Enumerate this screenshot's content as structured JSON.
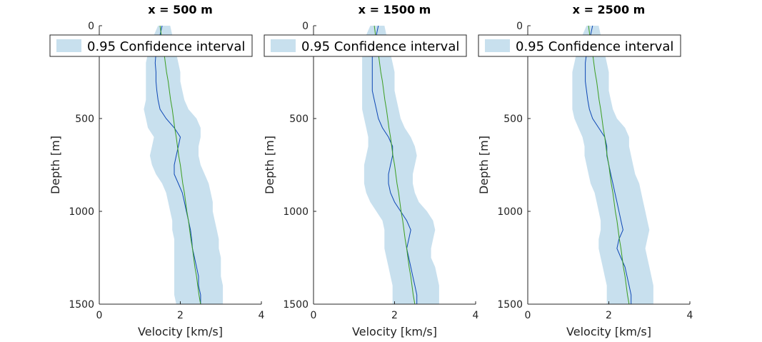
{
  "chart_data": [
    {
      "type": "line",
      "title": "x = 500 m",
      "xlabel": "Velocity [km/s]",
      "ylabel": "Depth [m]",
      "xlim": [
        0,
        4
      ],
      "ylim": [
        0,
        1500
      ],
      "y_reversed": true,
      "xticks": [
        "0",
        "2",
        "4"
      ],
      "yticks": [
        "0",
        "500",
        "1000",
        "1500"
      ],
      "legend": {
        "label": "0.95 Confidence interval",
        "placement": "top"
      },
      "depth": [
        0,
        50,
        100,
        150,
        200,
        250,
        300,
        350,
        400,
        450,
        500,
        550,
        600,
        650,
        700,
        750,
        800,
        850,
        900,
        950,
        1000,
        1050,
        1100,
        1150,
        1200,
        1250,
        1300,
        1350,
        1400,
        1450,
        1500
      ],
      "band_lower": [
        1.45,
        1.35,
        1.25,
        1.2,
        1.15,
        1.15,
        1.15,
        1.15,
        1.15,
        1.1,
        1.15,
        1.2,
        1.35,
        1.3,
        1.25,
        1.3,
        1.4,
        1.55,
        1.65,
        1.7,
        1.75,
        1.8,
        1.8,
        1.85,
        1.85,
        1.85,
        1.85,
        1.85,
        1.85,
        1.85,
        1.9
      ],
      "band_upper": [
        1.75,
        1.8,
        1.85,
        1.9,
        1.95,
        2.0,
        2.0,
        2.05,
        2.1,
        2.2,
        2.4,
        2.5,
        2.5,
        2.45,
        2.45,
        2.5,
        2.6,
        2.7,
        2.75,
        2.8,
        2.8,
        2.85,
        2.9,
        2.95,
        2.95,
        3.0,
        3.0,
        3.0,
        3.05,
        3.05,
        3.05
      ],
      "series": [
        {
          "values": [
            1.55,
            1.5,
            1.45,
            1.4,
            1.38,
            1.4,
            1.4,
            1.42,
            1.45,
            1.5,
            1.65,
            1.85,
            2.0,
            1.95,
            1.9,
            1.85,
            1.85,
            1.95,
            2.05,
            2.1,
            2.15,
            2.2,
            2.25,
            2.28,
            2.3,
            2.35,
            2.4,
            2.45,
            2.45,
            2.5,
            2.5
          ],
          "color": "#0d47b5"
        },
        {
          "values": [
            1.5,
            1.53,
            1.56,
            1.6,
            1.63,
            1.66,
            1.7,
            1.73,
            1.76,
            1.8,
            1.83,
            1.86,
            1.9,
            1.93,
            1.96,
            2.0,
            2.03,
            2.06,
            2.1,
            2.13,
            2.16,
            2.2,
            2.23,
            2.26,
            2.3,
            2.33,
            2.36,
            2.4,
            2.43,
            2.46,
            2.5
          ],
          "color": "#3d9e22"
        }
      ]
    },
    {
      "type": "line",
      "title": "x = 1500 m",
      "xlabel": "Velocity [km/s]",
      "ylabel": "Depth [m]",
      "xlim": [
        0,
        4
      ],
      "ylim": [
        0,
        1500
      ],
      "y_reversed": true,
      "xticks": [
        "0",
        "2",
        "4"
      ],
      "yticks": [
        "0",
        "500",
        "1000",
        "1500"
      ],
      "legend": {
        "label": "0.95 Confidence interval",
        "placement": "top"
      },
      "depth": [
        0,
        50,
        100,
        150,
        200,
        250,
        300,
        350,
        400,
        450,
        500,
        550,
        600,
        650,
        700,
        750,
        800,
        850,
        900,
        950,
        1000,
        1050,
        1100,
        1150,
        1200,
        1250,
        1300,
        1350,
        1400,
        1450,
        1500
      ],
      "band_lower": [
        1.4,
        1.3,
        1.25,
        1.2,
        1.2,
        1.2,
        1.2,
        1.2,
        1.2,
        1.2,
        1.25,
        1.3,
        1.35,
        1.35,
        1.3,
        1.25,
        1.25,
        1.25,
        1.3,
        1.4,
        1.55,
        1.7,
        1.75,
        1.75,
        1.75,
        1.8,
        1.85,
        1.9,
        1.95,
        1.95,
        1.95
      ],
      "band_upper": [
        1.75,
        1.8,
        1.85,
        1.9,
        1.95,
        2.0,
        2.0,
        2.0,
        2.05,
        2.1,
        2.15,
        2.25,
        2.4,
        2.5,
        2.55,
        2.5,
        2.45,
        2.45,
        2.5,
        2.6,
        2.8,
        2.95,
        3.0,
        2.95,
        2.9,
        2.9,
        3.0,
        3.05,
        3.1,
        3.1,
        3.1
      ],
      "series": [
        {
          "values": [
            1.6,
            1.55,
            1.5,
            1.45,
            1.45,
            1.45,
            1.45,
            1.45,
            1.5,
            1.55,
            1.6,
            1.7,
            1.85,
            1.95,
            1.95,
            1.9,
            1.85,
            1.85,
            1.9,
            2.0,
            2.15,
            2.3,
            2.4,
            2.35,
            2.3,
            2.35,
            2.4,
            2.45,
            2.5,
            2.55,
            2.55
          ],
          "color": "#0d47b5"
        },
        {
          "values": [
            1.5,
            1.53,
            1.56,
            1.6,
            1.63,
            1.66,
            1.7,
            1.73,
            1.76,
            1.8,
            1.83,
            1.86,
            1.9,
            1.93,
            1.96,
            2.0,
            2.03,
            2.06,
            2.1,
            2.13,
            2.16,
            2.2,
            2.23,
            2.26,
            2.3,
            2.33,
            2.36,
            2.4,
            2.43,
            2.46,
            2.5
          ],
          "color": "#3d9e22"
        }
      ]
    },
    {
      "type": "line",
      "title": "x = 2500 m",
      "xlabel": "Velocity [km/s]",
      "ylabel": "Depth [m]",
      "xlim": [
        0,
        4
      ],
      "ylim": [
        0,
        1500
      ],
      "y_reversed": true,
      "xticks": [
        "0",
        "2",
        "4"
      ],
      "yticks": [
        "0",
        "500",
        "1000",
        "1500"
      ],
      "legend": {
        "label": "0.95 Confidence interval",
        "placement": "top"
      },
      "depth": [
        0,
        50,
        100,
        150,
        200,
        250,
        300,
        350,
        400,
        450,
        500,
        550,
        600,
        650,
        700,
        750,
        800,
        850,
        900,
        950,
        1000,
        1050,
        1100,
        1150,
        1200,
        1250,
        1300,
        1350,
        1400,
        1450,
        1500
      ],
      "band_lower": [
        1.45,
        1.35,
        1.25,
        1.2,
        1.15,
        1.1,
        1.1,
        1.1,
        1.1,
        1.1,
        1.15,
        1.25,
        1.35,
        1.4,
        1.4,
        1.45,
        1.5,
        1.55,
        1.65,
        1.7,
        1.75,
        1.8,
        1.8,
        1.75,
        1.75,
        1.8,
        1.85,
        1.9,
        1.95,
        1.95,
        1.95
      ],
      "band_upper": [
        1.75,
        1.8,
        1.85,
        1.9,
        1.95,
        2.0,
        2.0,
        2.0,
        2.05,
        2.1,
        2.2,
        2.4,
        2.5,
        2.5,
        2.55,
        2.6,
        2.65,
        2.75,
        2.8,
        2.85,
        2.9,
        2.95,
        3.0,
        2.95,
        2.9,
        2.95,
        3.0,
        3.05,
        3.1,
        3.1,
        3.1
      ],
      "series": [
        {
          "values": [
            1.6,
            1.55,
            1.5,
            1.45,
            1.42,
            1.42,
            1.42,
            1.45,
            1.48,
            1.52,
            1.6,
            1.75,
            1.9,
            1.95,
            1.95,
            2.0,
            2.05,
            2.1,
            2.15,
            2.2,
            2.25,
            2.3,
            2.35,
            2.25,
            2.2,
            2.3,
            2.4,
            2.45,
            2.5,
            2.55,
            2.55
          ],
          "color": "#0d47b5"
        },
        {
          "values": [
            1.5,
            1.53,
            1.56,
            1.6,
            1.63,
            1.66,
            1.7,
            1.73,
            1.76,
            1.8,
            1.83,
            1.86,
            1.9,
            1.93,
            1.96,
            2.0,
            2.03,
            2.06,
            2.1,
            2.13,
            2.16,
            2.2,
            2.23,
            2.26,
            2.3,
            2.33,
            2.36,
            2.4,
            2.43,
            2.46,
            2.5
          ],
          "color": "#3d9e22"
        }
      ]
    }
  ],
  "colors": {
    "band": "#c8e0ee",
    "axis": "#262626"
  }
}
